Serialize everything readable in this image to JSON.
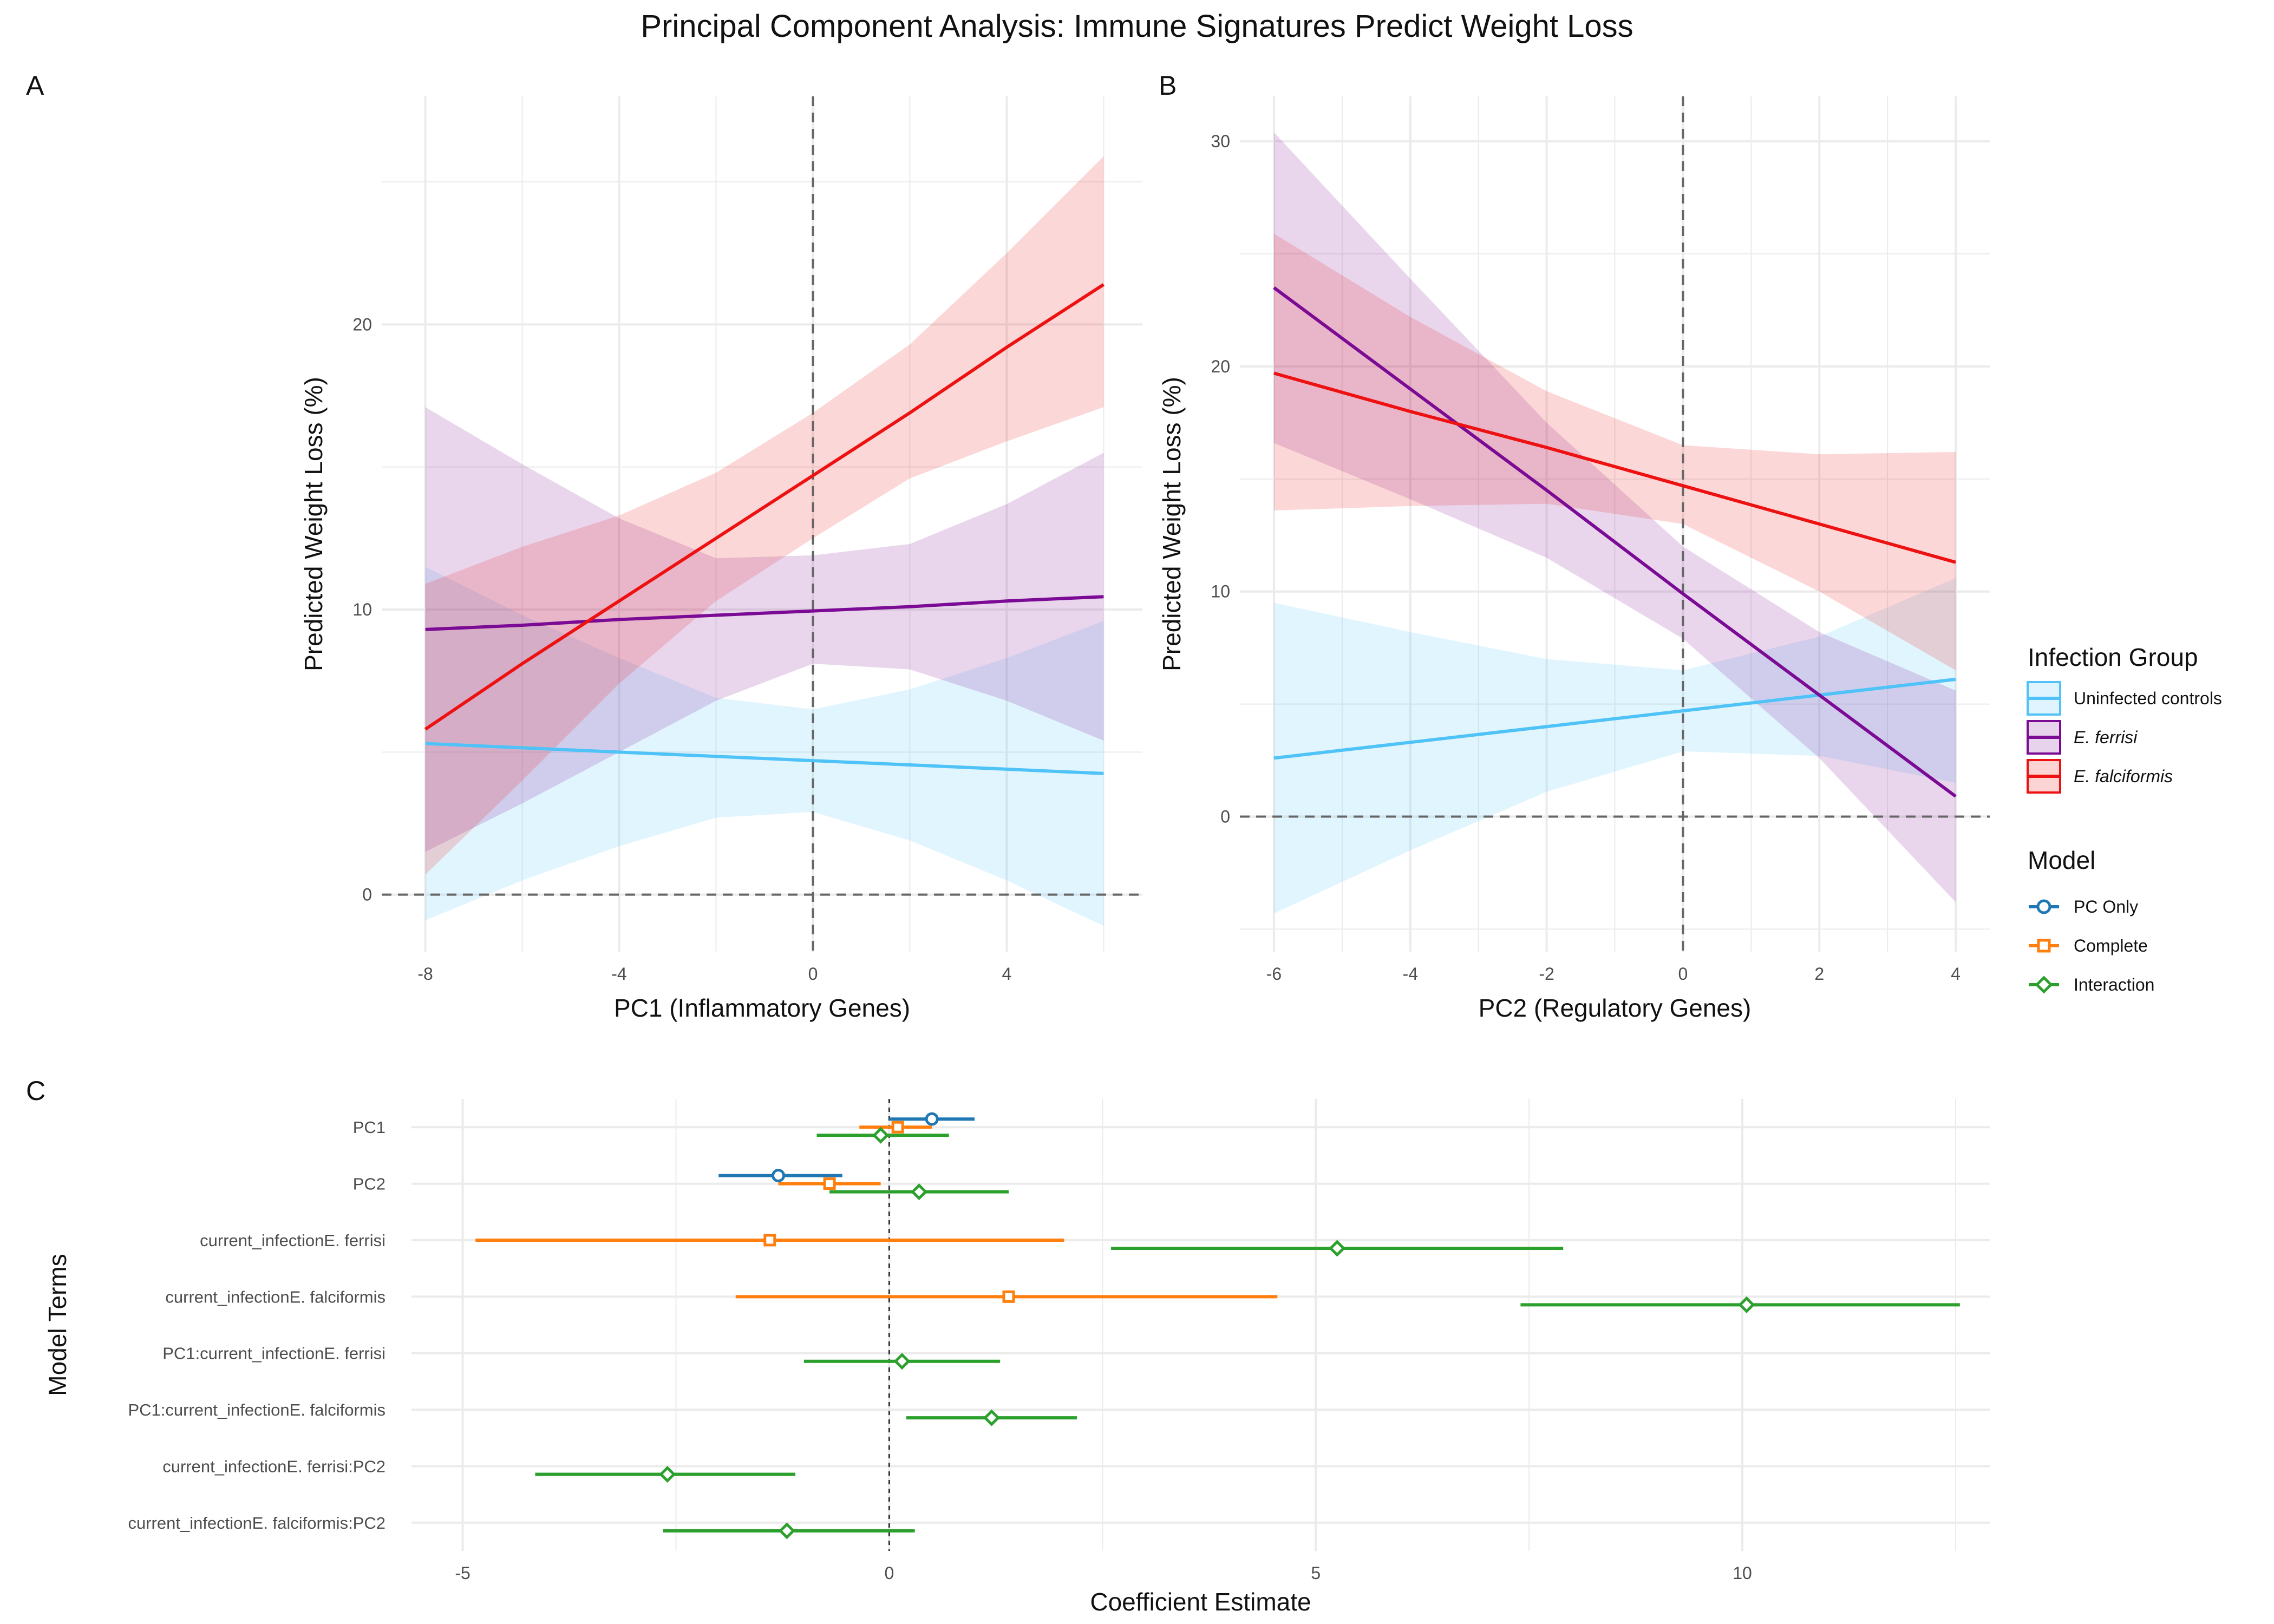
{
  "title": "Principal Component Analysis: Immune Signatures Predict Weight Loss",
  "colors": {
    "uninfected": "#4fc3f7",
    "ferrisi": "#7b0b94",
    "falciformis": "#ee1111",
    "pc_only": "#1f77b4",
    "complete": "#ff7f0e",
    "interaction": "#2ca02c",
    "grid": "#ebebeb",
    "refline": "#666666"
  },
  "legend": {
    "infection_title": "Infection Group",
    "infection_items": [
      {
        "label": "Uninfected controls",
        "key": "uninfected",
        "italic": false
      },
      {
        "label": "E. ferrisi",
        "key": "ferrisi",
        "italic": true
      },
      {
        "label": "E. falciformis",
        "key": "falciformis",
        "italic": true
      }
    ],
    "model_title": "Model",
    "model_items": [
      {
        "label": "PC Only",
        "key": "pc_only",
        "shape": "circle"
      },
      {
        "label": "Complete",
        "key": "complete",
        "shape": "square"
      },
      {
        "label": "Interaction",
        "key": "interaction",
        "shape": "diamond"
      }
    ]
  },
  "chart_data": [
    {
      "panel": "A",
      "type": "line",
      "xlabel": "PC1 (Inflammatory Genes)",
      "ylabel": "Predicted Weight Loss (%)",
      "xlim": [
        -8.9,
        6.8
      ],
      "ylim": [
        -2,
        28
      ],
      "xticks": [
        -8,
        -4,
        0,
        4
      ],
      "yticks": [
        0,
        10,
        20
      ],
      "grid": true,
      "reference_lines": {
        "x": 0,
        "y": 0
      },
      "series": [
        {
          "name": "Uninfected controls",
          "key": "uninfected",
          "x": [
            -8,
            -6,
            -4,
            -2,
            0,
            2,
            4,
            6
          ],
          "y": [
            5.3,
            5.15,
            5.0,
            4.85,
            4.7,
            4.55,
            4.4,
            4.25
          ],
          "lower": [
            -0.9,
            0.5,
            1.7,
            2.7,
            2.9,
            1.9,
            0.5,
            -1.1
          ],
          "upper": [
            11.5,
            9.8,
            8.3,
            6.9,
            6.5,
            7.2,
            8.3,
            9.6
          ]
        },
        {
          "name": "E. ferrisi",
          "key": "ferrisi",
          "x": [
            -8,
            -6,
            -4,
            -2,
            0,
            2,
            4,
            6
          ],
          "y": [
            9.3,
            9.45,
            9.65,
            9.8,
            9.95,
            10.1,
            10.3,
            10.45
          ],
          "lower": [
            1.5,
            3.2,
            5.0,
            6.8,
            8.1,
            7.9,
            6.8,
            5.4
          ],
          "upper": [
            17.1,
            15.1,
            13.2,
            11.8,
            11.9,
            12.3,
            13.7,
            15.5
          ]
        },
        {
          "name": "E. falciformis",
          "key": "falciformis",
          "x": [
            -8,
            -6,
            -4,
            -2,
            0,
            2,
            4,
            6
          ],
          "y": [
            5.8,
            8.1,
            10.3,
            12.5,
            14.7,
            16.9,
            19.2,
            21.4
          ],
          "lower": [
            0.7,
            4.0,
            7.4,
            10.3,
            12.5,
            14.6,
            15.9,
            17.1
          ],
          "upper": [
            10.9,
            12.2,
            13.3,
            14.8,
            16.9,
            19.3,
            22.5,
            25.9
          ]
        }
      ]
    },
    {
      "panel": "B",
      "type": "line",
      "xlabel": "PC2 (Regulatory Genes)",
      "ylabel": "Predicted Weight Loss (%)",
      "xlim": [
        -6.5,
        4.5
      ],
      "ylim": [
        -6,
        32
      ],
      "xticks": [
        -6,
        -4,
        -2,
        0,
        2,
        4
      ],
      "yticks": [
        0,
        10,
        20,
        30
      ],
      "grid": true,
      "reference_lines": {
        "x": 0,
        "y": 0
      },
      "series": [
        {
          "name": "Uninfected controls",
          "key": "uninfected",
          "x": [
            -6,
            -4,
            -2,
            0,
            2,
            4
          ],
          "y": [
            2.6,
            3.3,
            4.0,
            4.7,
            5.4,
            6.1
          ],
          "lower": [
            -4.3,
            -1.5,
            1.1,
            2.9,
            2.7,
            1.5
          ],
          "upper": [
            9.5,
            8.2,
            7.0,
            6.5,
            8.0,
            10.6
          ]
        },
        {
          "name": "E. ferrisi",
          "key": "ferrisi",
          "x": [
            -6,
            -4,
            -2,
            0,
            2,
            4
          ],
          "y": [
            23.5,
            19.0,
            14.5,
            9.9,
            5.4,
            0.9
          ],
          "lower": [
            16.6,
            14.1,
            11.5,
            7.9,
            2.6,
            -3.8
          ],
          "upper": [
            30.4,
            23.9,
            17.5,
            12.0,
            8.2,
            5.6
          ]
        },
        {
          "name": "E. falciformis",
          "key": "falciformis",
          "x": [
            -6,
            -4,
            -2,
            0,
            2,
            4
          ],
          "y": [
            19.7,
            18.0,
            16.4,
            14.7,
            13.0,
            11.3
          ],
          "lower": [
            13.6,
            13.8,
            13.9,
            13.0,
            10.0,
            6.5
          ],
          "upper": [
            25.9,
            22.2,
            18.9,
            16.5,
            16.1,
            16.2
          ]
        }
      ]
    },
    {
      "panel": "C",
      "type": "scatter",
      "xlabel": "Coefficient Estimate",
      "ylabel": "Model Terms",
      "xlim": [
        -5.6,
        12.9
      ],
      "xticks": [
        -5,
        0,
        5,
        10
      ],
      "grid": true,
      "reference_lines": {
        "x": 0
      },
      "terms": [
        "PC1",
        "PC2",
        "current_infectionE. ferrisi",
        "current_infectionE. falciformis",
        "PC1:current_infectionE. ferrisi",
        "PC1:current_infectionE. falciformis",
        "current_infectionE. ferrisi:PC2",
        "current_infectionE. falciformis:PC2"
      ],
      "series": [
        {
          "name": "PC Only",
          "key": "pc_only",
          "shape": "circle",
          "points": [
            {
              "term": "PC1",
              "estimate": 0.5,
              "low": 0.0,
              "high": 1.0
            },
            {
              "term": "PC2",
              "estimate": -1.3,
              "low": -2.0,
              "high": -0.55
            }
          ]
        },
        {
          "name": "Complete",
          "key": "complete",
          "shape": "square",
          "points": [
            {
              "term": "PC1",
              "estimate": 0.1,
              "low": -0.35,
              "high": 0.5
            },
            {
              "term": "PC2",
              "estimate": -0.7,
              "low": -1.3,
              "high": -0.1
            },
            {
              "term": "current_infectionE. ferrisi",
              "estimate": -1.4,
              "low": -4.85,
              "high": 2.05
            },
            {
              "term": "current_infectionE. falciformis",
              "estimate": 1.4,
              "low": -1.8,
              "high": 4.55
            }
          ]
        },
        {
          "name": "Interaction",
          "key": "interaction",
          "shape": "diamond",
          "points": [
            {
              "term": "PC1",
              "estimate": -0.1,
              "low": -0.85,
              "high": 0.7
            },
            {
              "term": "PC2",
              "estimate": 0.35,
              "low": -0.7,
              "high": 1.4
            },
            {
              "term": "current_infectionE. ferrisi",
              "estimate": 5.25,
              "low": 2.6,
              "high": 7.9
            },
            {
              "term": "current_infectionE. falciformis",
              "estimate": 10.05,
              "low": 7.4,
              "high": 12.55
            },
            {
              "term": "PC1:current_infectionE. ferrisi",
              "estimate": 0.15,
              "low": -1.0,
              "high": 1.3
            },
            {
              "term": "PC1:current_infectionE. falciformis",
              "estimate": 1.2,
              "low": 0.2,
              "high": 2.2
            },
            {
              "term": "current_infectionE. ferrisi:PC2",
              "estimate": -2.6,
              "low": -4.15,
              "high": -1.1
            },
            {
              "term": "current_infectionE. falciformis:PC2",
              "estimate": -1.2,
              "low": -2.65,
              "high": 0.3
            }
          ]
        }
      ]
    }
  ]
}
